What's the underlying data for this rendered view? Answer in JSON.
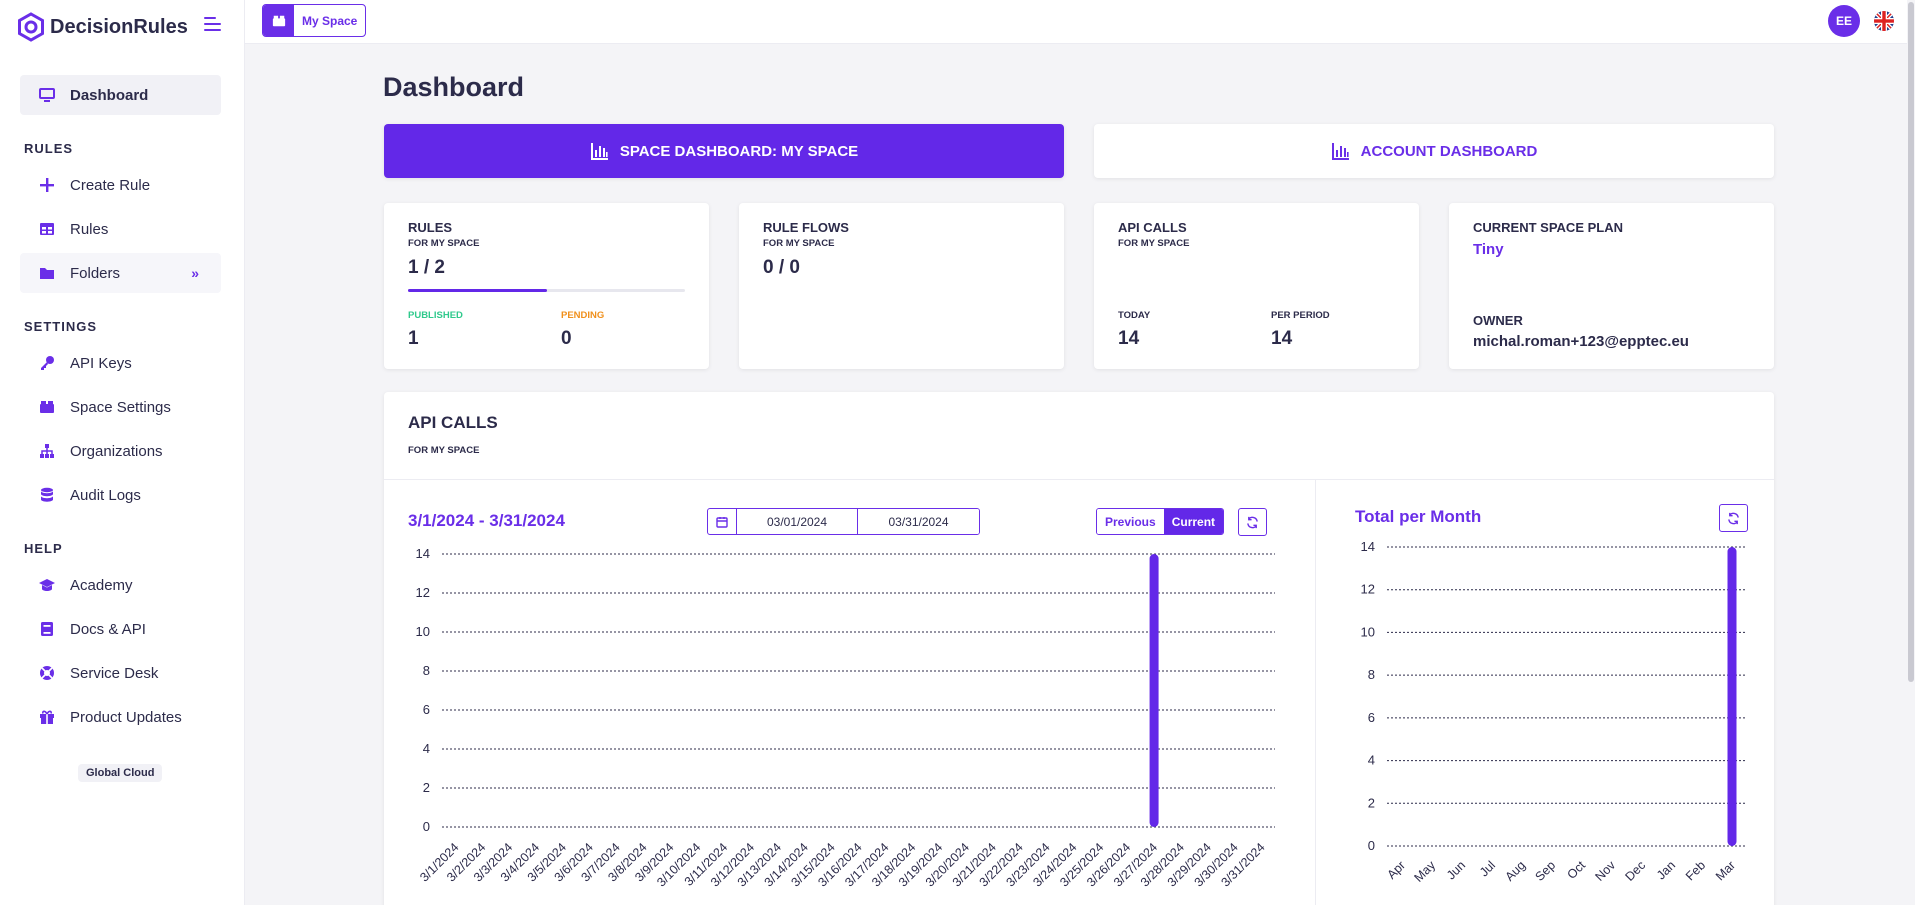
{
  "brand": {
    "name": "DecisionRules"
  },
  "sidebar": {
    "dashboard": "Dashboard",
    "sections": {
      "rules": "RULES",
      "settings": "SETTINGS",
      "help": "HELP"
    },
    "rules_items": [
      {
        "label": "Create Rule",
        "icon": "plus-icon"
      },
      {
        "label": "Rules",
        "icon": "table-icon"
      },
      {
        "label": "Folders",
        "icon": "folder-icon"
      }
    ],
    "settings_items": [
      {
        "label": "API Keys",
        "icon": "key-icon"
      },
      {
        "label": "Space Settings",
        "icon": "boxes-icon"
      },
      {
        "label": "Organizations",
        "icon": "sitemap-icon"
      },
      {
        "label": "Audit Logs",
        "icon": "database-icon"
      }
    ],
    "help_items": [
      {
        "label": "Academy",
        "icon": "graduation-cap-icon"
      },
      {
        "label": "Docs & API",
        "icon": "book-icon"
      },
      {
        "label": "Service Desk",
        "icon": "lifebuoy-icon"
      },
      {
        "label": "Product Updates",
        "icon": "gift-icon"
      }
    ],
    "region": "Global Cloud"
  },
  "topbar": {
    "space_label": "My Space",
    "avatar_initials": "EE"
  },
  "main": {
    "title": "Dashboard",
    "space_dashboard_button": "SPACE DASHBOARD: MY SPACE",
    "account_dashboard_button": "ACCOUNT DASHBOARD",
    "cards": {
      "rules": {
        "title": "RULES",
        "subtitle": "FOR MY SPACE",
        "value": "1 / 2",
        "progress": 0.5,
        "published_label": "PUBLISHED",
        "published_value": "1",
        "pending_label": "PENDING",
        "pending_value": "0"
      },
      "rule_flows": {
        "title": "RULE FLOWS",
        "subtitle": "FOR MY SPACE",
        "value": "0 / 0"
      },
      "api_calls": {
        "title": "API CALLS",
        "subtitle": "FOR MY SPACE",
        "today_label": "TODAY",
        "today_value": "14",
        "period_label": "PER PERIOD",
        "period_value": "14"
      },
      "plan": {
        "title": "CURRENT SPACE PLAN",
        "plan_name": "Tiny",
        "owner_label": "OWNER",
        "owner_value": "michal.roman+123@epptec.eu"
      }
    },
    "api_panel": {
      "title": "API CALLS",
      "subtitle": "FOR MY SPACE",
      "range_title": "3/1/2024 - 3/31/2024",
      "date_from": "03/01/2024",
      "date_to": "03/31/2024",
      "previous_label": "Previous",
      "current_label": "Current",
      "monthly_title": "Total per Month"
    }
  },
  "colors": {
    "accent": "#6328e8",
    "published": "#2fc98c",
    "pending": "#f0901c"
  },
  "chart_data": [
    {
      "type": "bar",
      "categories": [
        "3/1/2024",
        "3/2/2024",
        "3/3/2024",
        "3/4/2024",
        "3/5/2024",
        "3/6/2024",
        "3/7/2024",
        "3/8/2024",
        "3/9/2024",
        "3/10/2024",
        "3/11/2024",
        "3/12/2024",
        "3/13/2024",
        "3/14/2024",
        "3/15/2024",
        "3/16/2024",
        "3/17/2024",
        "3/18/2024",
        "3/19/2024",
        "3/20/2024",
        "3/21/2024",
        "3/22/2024",
        "3/23/2024",
        "3/24/2024",
        "3/25/2024",
        "3/26/2024",
        "3/27/2024",
        "3/28/2024",
        "3/29/2024",
        "3/30/2024",
        "3/31/2024"
      ],
      "values": [
        0,
        0,
        0,
        0,
        0,
        0,
        0,
        0,
        0,
        0,
        0,
        0,
        0,
        0,
        0,
        0,
        0,
        0,
        0,
        0,
        0,
        0,
        0,
        0,
        0,
        0,
        14,
        0,
        0,
        0,
        0
      ],
      "ylim": [
        0,
        14
      ],
      "yticks": [
        0,
        2,
        4,
        6,
        8,
        10,
        12,
        14
      ],
      "grid": true
    },
    {
      "type": "bar",
      "title": "Total per Month",
      "categories": [
        "Apr",
        "May",
        "Jun",
        "Jul",
        "Aug",
        "Sep",
        "Oct",
        "Nov",
        "Dec",
        "Jan",
        "Feb",
        "Mar"
      ],
      "values": [
        0,
        0,
        0,
        0,
        0,
        0,
        0,
        0,
        0,
        0,
        0,
        14
      ],
      "ylim": [
        0,
        14
      ],
      "yticks": [
        0,
        2,
        4,
        6,
        8,
        10,
        12,
        14
      ],
      "grid": true
    }
  ]
}
